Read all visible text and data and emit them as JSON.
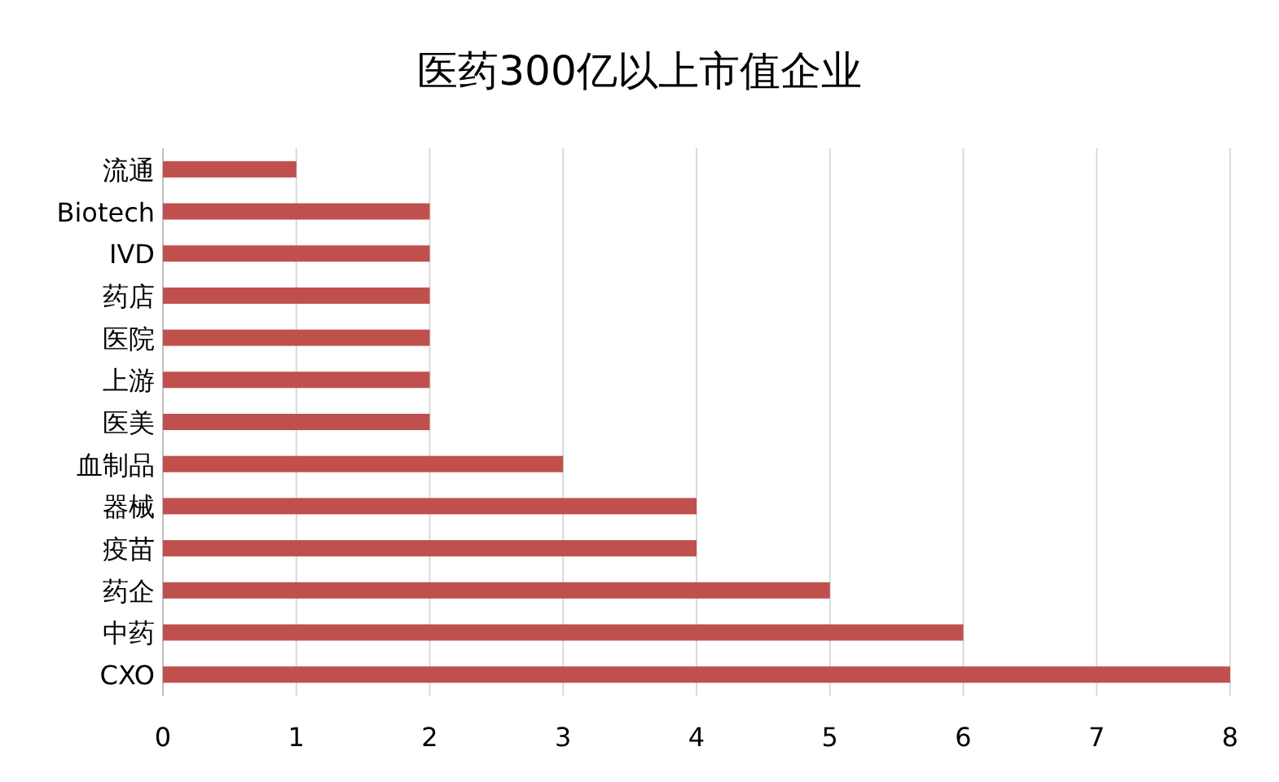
{
  "chart_data": {
    "type": "bar",
    "orientation": "horizontal",
    "title": "医药300亿以上市值企业",
    "categories": [
      "流通",
      "Biotech",
      "IVD",
      "药店",
      "医院",
      "上游",
      "医美",
      "血制品",
      "器械",
      "疫苗",
      "药企",
      "中药",
      "CXO"
    ],
    "values": [
      1,
      2,
      2,
      2,
      2,
      2,
      2,
      3,
      4,
      4,
      5,
      6,
      8
    ],
    "color": "#c0504d",
    "xlim": [
      0,
      8
    ],
    "xticks": [
      0,
      1,
      2,
      3,
      4,
      5,
      6,
      7,
      8
    ],
    "grid": "x"
  }
}
